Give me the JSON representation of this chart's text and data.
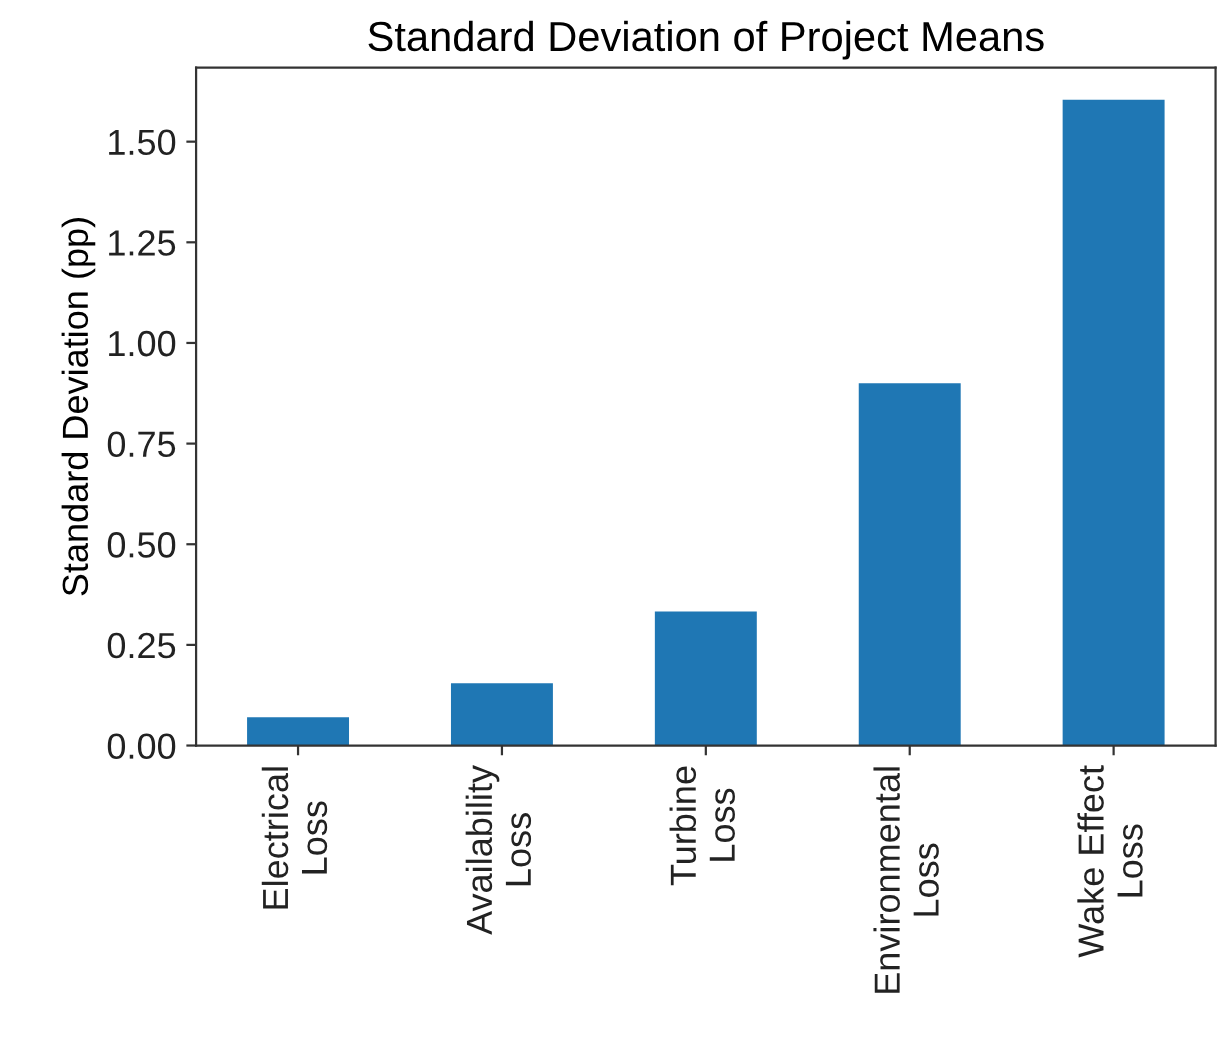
{
  "chart_data": {
    "type": "bar",
    "title": "Standard Deviation of Project Means",
    "ylabel": "Standard Deviation (pp)",
    "categories": [
      "Electrical\nLoss",
      "Availability\nLoss",
      "Turbine\nLoss",
      "Environmental\nLoss",
      "Wake Effect\nLoss"
    ],
    "values": [
      0.07,
      0.155,
      0.333,
      0.9,
      1.604
    ],
    "color": "#1f77b4",
    "ylim": [
      0,
      1.684
    ],
    "yticks": [
      {
        "value": 0,
        "label": "0.00"
      },
      {
        "value": 0.25,
        "label": "0.25"
      },
      {
        "value": 0.5,
        "label": "0.50"
      },
      {
        "value": 0.75,
        "label": "0.75"
      },
      {
        "value": 1.0,
        "label": "1.00"
      },
      {
        "value": 1.25,
        "label": "1.25"
      },
      {
        "value": 1.5,
        "label": "1.50"
      }
    ],
    "grid": false
  }
}
